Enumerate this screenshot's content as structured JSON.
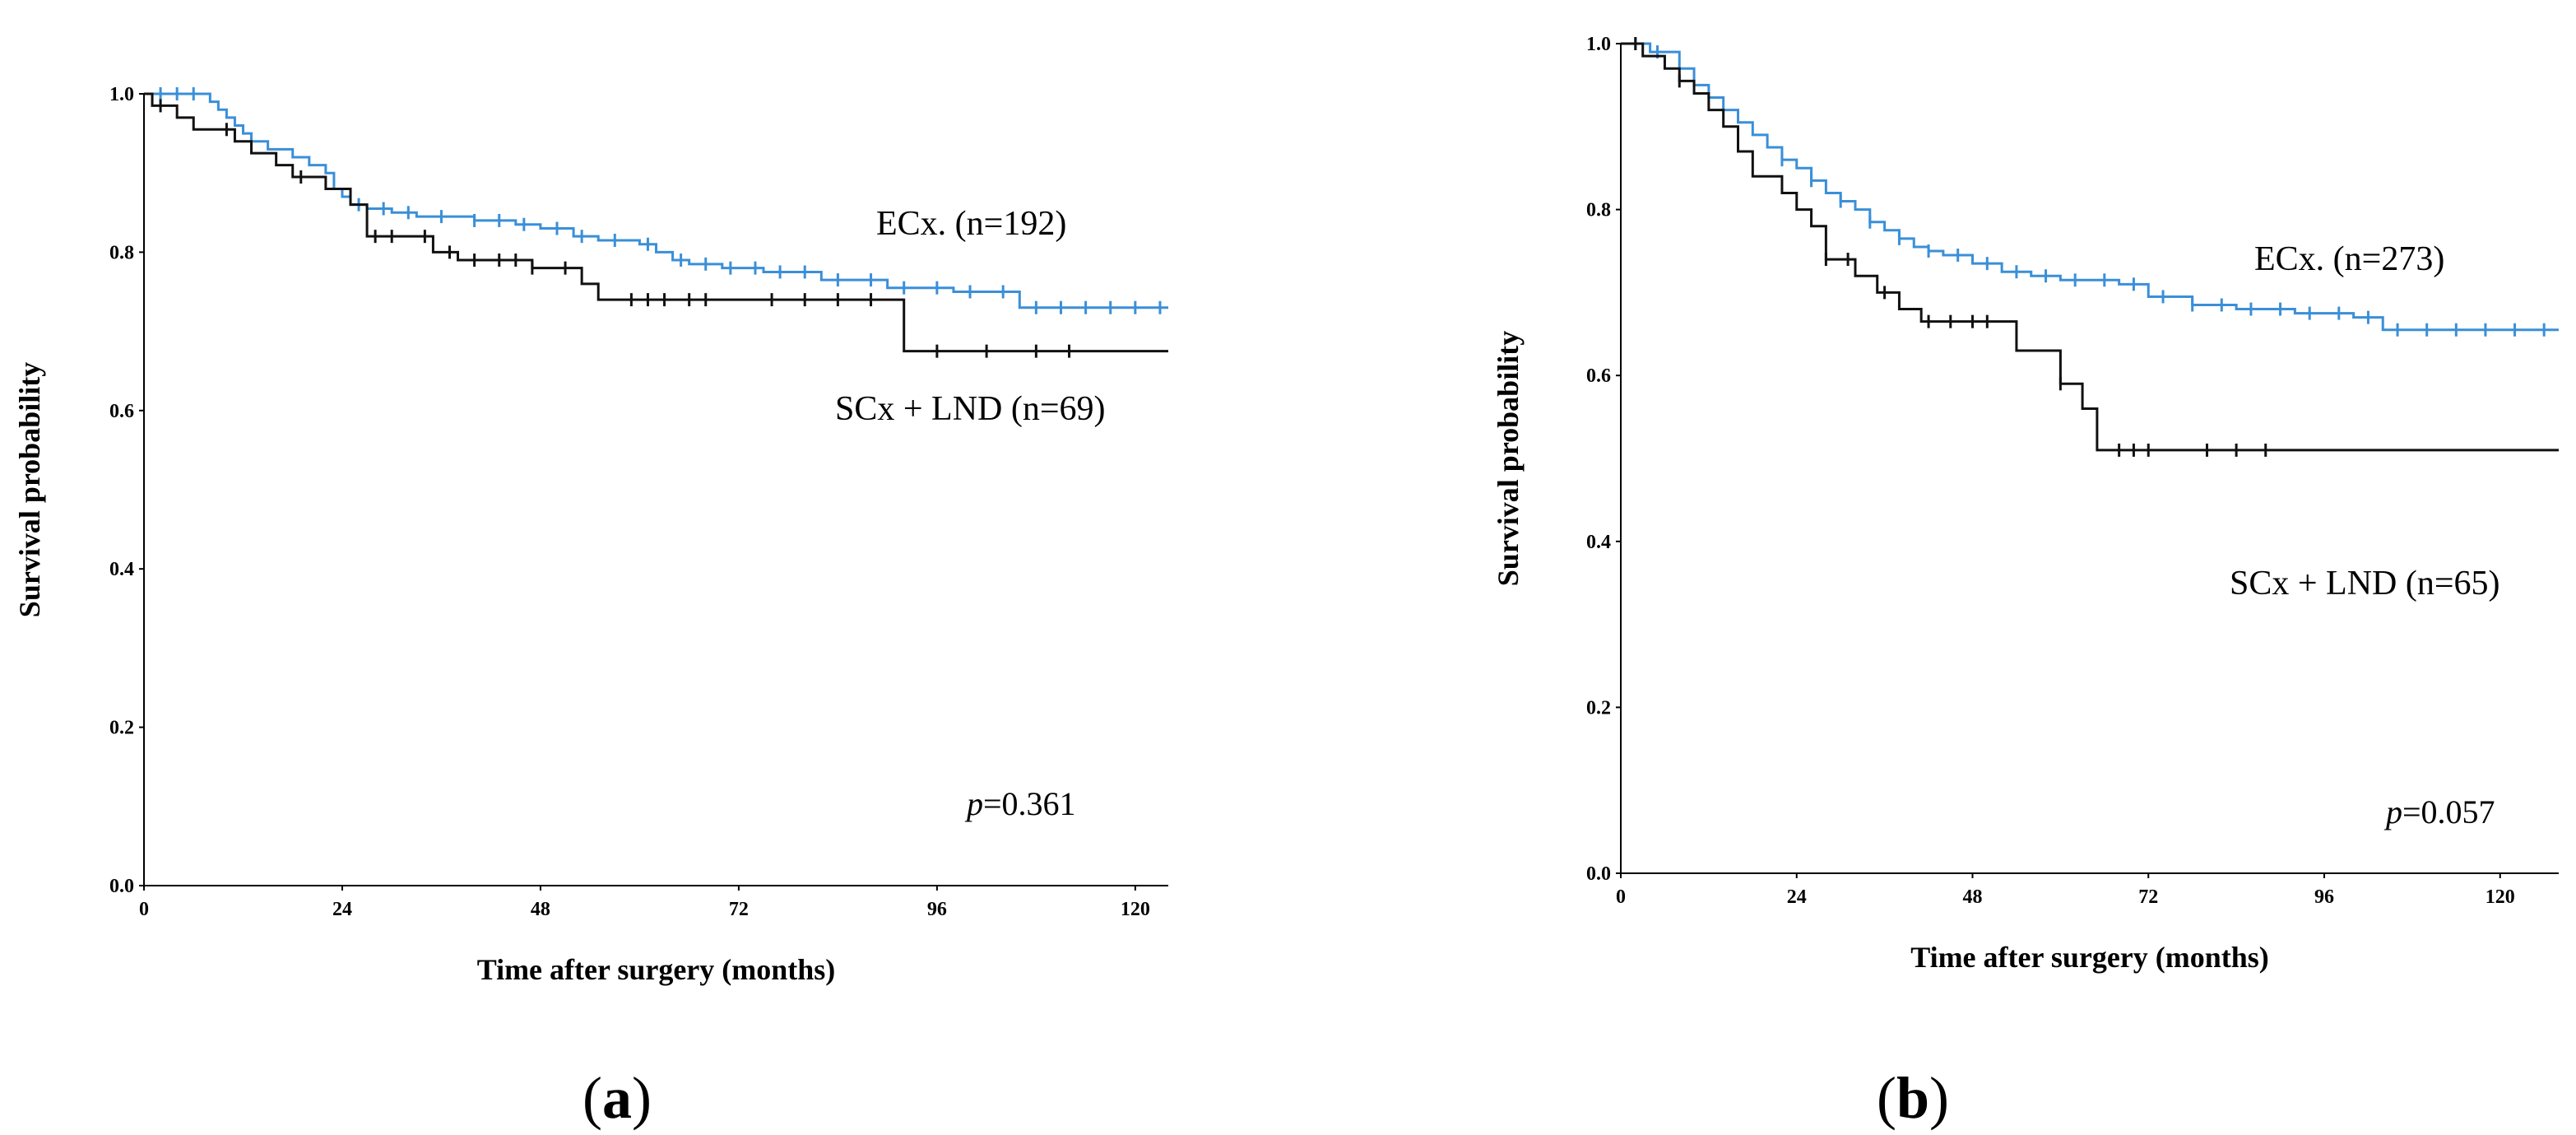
{
  "figure": {
    "panels": [
      {
        "label": "(a)",
        "label_letter": "a"
      },
      {
        "label": "(b)",
        "label_letter": "b"
      }
    ]
  },
  "colors": {
    "ecx": "#3a8fd8",
    "scx": "#111111"
  },
  "chart_data": [
    {
      "type": "line",
      "subtype": "kaplan-meier",
      "panel": "(a)",
      "xlabel": "Time after surgery (months)",
      "ylabel": "Survival probability",
      "xlim": [
        0,
        124
      ],
      "ylim": [
        0,
        1.0
      ],
      "xticks": [
        0,
        24,
        48,
        72,
        96,
        120
      ],
      "yticks": [
        0.0,
        0.2,
        0.4,
        0.6,
        0.8,
        1.0
      ],
      "ytick_labels": [
        "0.0",
        "0.2",
        "0.4",
        "0.6",
        "0.8",
        "1.0"
      ],
      "p_prefix": "p",
      "p_value": "=0.361",
      "series": [
        {
          "name": "ECx. (n=192)",
          "color_key": "ecx",
          "x": [
            0,
            6,
            8,
            9,
            10,
            11,
            12,
            13,
            15,
            18,
            20,
            22,
            23,
            24,
            25,
            27,
            30,
            33,
            40,
            45,
            48,
            52,
            55,
            60,
            62,
            64,
            66,
            70,
            75,
            82,
            90,
            98,
            106,
            124
          ],
          "y": [
            1.0,
            1.0,
            0.99,
            0.98,
            0.97,
            0.96,
            0.95,
            0.94,
            0.93,
            0.92,
            0.91,
            0.9,
            0.88,
            0.87,
            0.86,
            0.855,
            0.85,
            0.845,
            0.84,
            0.835,
            0.83,
            0.82,
            0.815,
            0.81,
            0.8,
            0.79,
            0.785,
            0.78,
            0.775,
            0.765,
            0.755,
            0.75,
            0.73,
            0.73
          ],
          "censor_x": [
            2,
            4,
            6,
            26,
            29,
            32,
            36,
            40,
            43,
            46,
            50,
            53,
            57,
            61,
            65,
            68,
            71,
            74,
            77,
            80,
            84,
            88,
            92,
            96,
            100,
            104,
            108,
            111,
            114,
            117,
            120,
            123
          ]
        },
        {
          "name": "SCx + LND (n=69)",
          "color_key": "scx",
          "x": [
            0,
            1,
            4,
            6,
            11,
            13,
            16,
            18,
            22,
            25,
            27,
            35,
            38,
            47,
            53,
            55,
            92,
            124
          ],
          "y": [
            1.0,
            0.985,
            0.97,
            0.955,
            0.94,
            0.925,
            0.91,
            0.895,
            0.88,
            0.86,
            0.82,
            0.8,
            0.79,
            0.78,
            0.76,
            0.74,
            0.675,
            0.675
          ],
          "censor_x": [
            2,
            10,
            19,
            28,
            30,
            34,
            37,
            40,
            43,
            45,
            47,
            51,
            59,
            61,
            63,
            66,
            68,
            76,
            80,
            84,
            88,
            96,
            102,
            108,
            112
          ]
        }
      ]
    },
    {
      "type": "line",
      "subtype": "kaplan-meier",
      "panel": "(b)",
      "xlabel": "Time after surgery (months)",
      "ylabel": "Survival probability",
      "xlim": [
        0,
        128
      ],
      "ylim": [
        0,
        1.0
      ],
      "xticks": [
        0,
        24,
        48,
        72,
        96,
        120
      ],
      "yticks": [
        0.0,
        0.2,
        0.4,
        0.6,
        0.8,
        1.0
      ],
      "ytick_labels": [
        "0.0",
        "0.2",
        "0.4",
        "0.6",
        "0.8",
        "1.0"
      ],
      "p_prefix": "p",
      "p_value": "=0.057",
      "series": [
        {
          "name": "ECx. (n=273)",
          "color_key": "ecx",
          "x": [
            0,
            4,
            8,
            10,
            12,
            14,
            16,
            18,
            20,
            22,
            24,
            26,
            28,
            30,
            32,
            34,
            36,
            38,
            40,
            42,
            44,
            48,
            52,
            56,
            60,
            64,
            68,
            72,
            78,
            84,
            92,
            100,
            104,
            128
          ],
          "y": [
            1.0,
            0.99,
            0.97,
            0.95,
            0.935,
            0.92,
            0.905,
            0.89,
            0.875,
            0.86,
            0.85,
            0.835,
            0.82,
            0.81,
            0.8,
            0.785,
            0.775,
            0.765,
            0.755,
            0.75,
            0.745,
            0.735,
            0.725,
            0.72,
            0.715,
            0.715,
            0.71,
            0.695,
            0.685,
            0.68,
            0.675,
            0.67,
            0.655,
            0.655
          ],
          "censor_x": [
            2,
            5,
            22,
            26,
            30,
            34,
            38,
            42,
            46,
            50,
            54,
            58,
            62,
            66,
            70,
            74,
            78,
            82,
            86,
            90,
            94,
            98,
            102,
            106,
            110,
            114,
            118,
            122,
            126
          ]
        },
        {
          "name": "SCx + LND (n=65)",
          "color_key": "scx",
          "x": [
            0,
            3,
            6,
            8,
            10,
            12,
            14,
            16,
            18,
            22,
            24,
            26,
            28,
            32,
            35,
            38,
            41,
            47,
            54,
            60,
            63,
            65,
            128
          ],
          "y": [
            1.0,
            0.985,
            0.97,
            0.955,
            0.94,
            0.92,
            0.9,
            0.87,
            0.84,
            0.82,
            0.8,
            0.78,
            0.74,
            0.72,
            0.7,
            0.68,
            0.665,
            0.665,
            0.63,
            0.59,
            0.56,
            0.51,
            0.51
          ],
          "censor_x": [
            2,
            8,
            28,
            31,
            36,
            42,
            45,
            48,
            50,
            60,
            68,
            70,
            72,
            80,
            84,
            88
          ]
        }
      ]
    }
  ]
}
